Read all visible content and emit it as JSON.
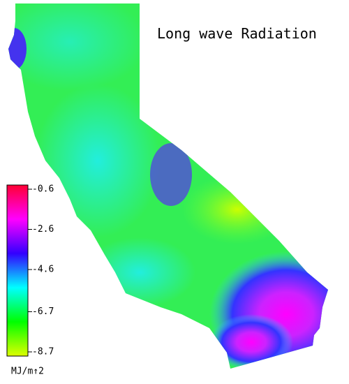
{
  "title": "Long wave Radiation",
  "colorbar": {
    "ticks": [
      -0.6,
      -2.6,
      -4.6,
      -6.7,
      -8.7
    ],
    "unit": "MJ/m↑2",
    "colors": [
      "#ff0033",
      "#ff00ff",
      "#3300ff",
      "#00ffff",
      "#00ff00",
      "#ddff00"
    ]
  }
}
